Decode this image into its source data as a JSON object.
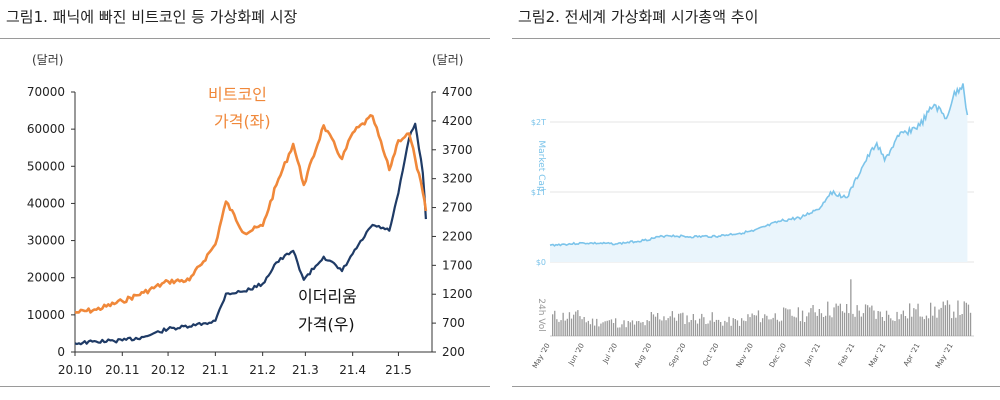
{
  "figure1": {
    "title": "그림1.  패닉에 빠진 비트코인 등 가상화폐 시장",
    "left_unit": "(달러)",
    "right_unit": "(달러)",
    "annot_btc_line1": "비트코인",
    "annot_btc_line2": "가격(좌)",
    "annot_eth_line1": "이더리움",
    "annot_eth_line2": "가격(우)",
    "colors": {
      "btc": "#f0883a",
      "eth": "#1f3b66",
      "axis": "#333333"
    }
  },
  "figure2": {
    "title": "그림2.  전세계 가상화폐 시가총액 추이",
    "upper_ticks": [
      "$2T",
      "$1T",
      "$0"
    ],
    "upper_axis_label": "Market Cap",
    "lower_axis_label": "24h Vol",
    "x_ticks": [
      "May '20",
      "Jun '20",
      "Jul '20",
      "Aug '20",
      "Sep '20",
      "Oct '20",
      "Nov '20",
      "Dec '20",
      "Jan '21",
      "Feb '21",
      "Mar '21",
      "Apr '21",
      "May '21"
    ],
    "colors": {
      "line": "#7cc4ea",
      "area": "#eaf5fc",
      "volume": "#9a9a9a",
      "grid": "#e6e6e6",
      "tick": "#7cc4ea"
    }
  },
  "chart_data": [
    {
      "type": "line",
      "title": "그림1.  패닉에 빠진 비트코인 등 가상화폐 시장",
      "x_tick_labels": [
        "20.10",
        "20.11",
        "20.12",
        "21.1",
        "21.2",
        "21.3",
        "21.4",
        "21.5"
      ],
      "y_left": {
        "label": "(달러)",
        "ylim": [
          0,
          70000
        ],
        "ticks": [
          0,
          10000,
          20000,
          30000,
          40000,
          50000,
          60000,
          70000
        ]
      },
      "y_right": {
        "label": "(달러)",
        "ylim": [
          200,
          4700
        ],
        "ticks": [
          200,
          700,
          1200,
          1700,
          2200,
          2700,
          3200,
          3700,
          4200,
          4700
        ]
      },
      "series": [
        {
          "name": "비트코인 가격(좌)",
          "axis": "left",
          "x": [
            "2020-10-01",
            "2020-10-15",
            "2020-11-01",
            "2020-11-15",
            "2020-12-01",
            "2020-12-15",
            "2021-01-01",
            "2021-01-08",
            "2021-01-20",
            "2021-02-01",
            "2021-02-10",
            "2021-02-21",
            "2021-02-28",
            "2021-03-13",
            "2021-03-25",
            "2021-04-01",
            "2021-04-14",
            "2021-04-25",
            "2021-05-01",
            "2021-05-08",
            "2021-05-12",
            "2021-05-17",
            "2021-05-19"
          ],
          "values": [
            10600,
            11400,
            13700,
            16000,
            19000,
            19300,
            29000,
            40500,
            32000,
            34000,
            45000,
            56000,
            45000,
            61000,
            52000,
            59000,
            63500,
            49000,
            57000,
            58800,
            52000,
            43000,
            38000
          ]
        },
        {
          "name": "이더리움 가격(우)",
          "axis": "right",
          "x": [
            "2020-10-01",
            "2020-10-15",
            "2020-11-01",
            "2020-11-15",
            "2020-12-01",
            "2020-12-15",
            "2021-01-01",
            "2021-01-08",
            "2021-01-20",
            "2021-02-01",
            "2021-02-10",
            "2021-02-21",
            "2021-02-28",
            "2021-03-13",
            "2021-03-25",
            "2021-04-01",
            "2021-04-14",
            "2021-04-25",
            "2021-05-01",
            "2021-05-08",
            "2021-05-12",
            "2021-05-17",
            "2021-05-19"
          ],
          "values": [
            350,
            380,
            400,
            460,
            600,
            640,
            740,
            1210,
            1250,
            1380,
            1750,
            1950,
            1450,
            1850,
            1600,
            1900,
            2400,
            2300,
            2950,
            3900,
            4150,
            3300,
            2500
          ]
        }
      ]
    },
    {
      "type": "area",
      "title": "그림2.  전세계 가상화폐 시가총액 추이",
      "x_tick_labels": [
        "May '20",
        "Jun '20",
        "Jul '20",
        "Aug '20",
        "Sep '20",
        "Oct '20",
        "Nov '20",
        "Dec '20",
        "Jan '21",
        "Feb '21",
        "Mar '21",
        "Apr '21",
        "May '21"
      ],
      "y_tick_labels": [
        "$0",
        "$1T",
        "$2T"
      ],
      "ylim": [
        0,
        2.6
      ],
      "series": [
        {
          "name": "Market Cap",
          "unit": "trillion USD",
          "x": [
            "2020-05-01",
            "2020-06-01",
            "2020-07-01",
            "2020-07-25",
            "2020-08-15",
            "2020-09-05",
            "2020-10-01",
            "2020-11-01",
            "2020-11-25",
            "2020-12-15",
            "2021-01-01",
            "2021-01-10",
            "2021-01-25",
            "2021-02-10",
            "2021-02-21",
            "2021-02-28",
            "2021-03-13",
            "2021-04-01",
            "2021-04-14",
            "2021-04-25",
            "2021-05-01",
            "2021-05-10",
            "2021-05-14"
          ],
          "values": [
            0.24,
            0.27,
            0.26,
            0.31,
            0.38,
            0.36,
            0.37,
            0.44,
            0.58,
            0.64,
            0.78,
            1.0,
            0.92,
            1.42,
            1.7,
            1.45,
            1.8,
            1.95,
            2.25,
            2.05,
            2.35,
            2.55,
            2.1
          ]
        },
        {
          "name": "24h Vol",
          "unit": "relative",
          "x": [
            "2020-05",
            "2020-06",
            "2020-07",
            "2020-08",
            "2020-09",
            "2020-10",
            "2020-11",
            "2020-12",
            "2021-01",
            "2021-02",
            "2021-03",
            "2021-04",
            "2021-05"
          ],
          "values": [
            0.55,
            0.4,
            0.35,
            0.55,
            0.5,
            0.4,
            0.55,
            0.6,
            0.75,
            0.7,
            0.6,
            0.7,
            0.75
          ]
        }
      ]
    }
  ]
}
